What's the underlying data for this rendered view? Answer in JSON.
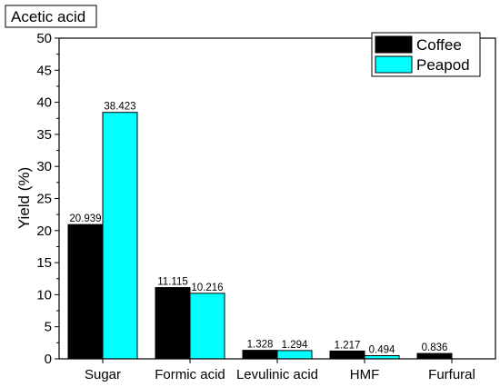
{
  "chart_data": {
    "type": "bar",
    "title": "Acetic acid",
    "xlabel": "",
    "ylabel": "Yield (%)",
    "ylim": [
      0,
      50
    ],
    "yticks": [
      0,
      5,
      10,
      15,
      20,
      25,
      30,
      35,
      40,
      45,
      50
    ],
    "categories": [
      "Sugar",
      "Formic acid",
      "Levulinic acid",
      "HMF",
      "Furfural"
    ],
    "series": [
      {
        "name": "Coffee",
        "color": "#000000",
        "values": [
          20.939,
          11.115,
          1.328,
          1.217,
          0.836
        ],
        "labels": [
          "20.939",
          "11.115",
          "1.328",
          "1.217",
          "0.836"
        ]
      },
      {
        "name": "Peapod",
        "color": "#00FFFF",
        "values": [
          38.423,
          10.216,
          1.294,
          0.494,
          null
        ],
        "labels": [
          "38.423",
          "10.216",
          "1.294",
          "0.494",
          ""
        ]
      }
    ],
    "legend": "top-right",
    "grid": false
  }
}
